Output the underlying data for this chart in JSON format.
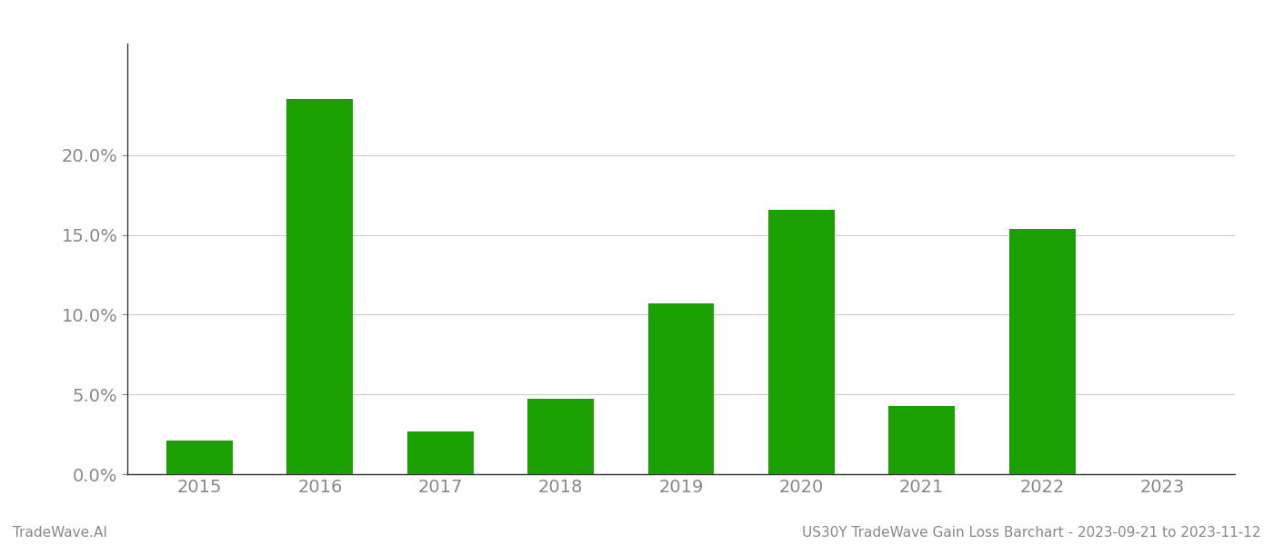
{
  "categories": [
    "2015",
    "2016",
    "2017",
    "2018",
    "2019",
    "2020",
    "2021",
    "2022",
    "2023"
  ],
  "values": [
    0.021,
    0.235,
    0.027,
    0.047,
    0.107,
    0.166,
    0.043,
    0.154,
    0.0
  ],
  "bar_color": "#1aA000",
  "background_color": "#ffffff",
  "ylabel_ticks": [
    0.0,
    0.05,
    0.1,
    0.15,
    0.2
  ],
  "ylim": [
    0.0,
    0.27
  ],
  "grid_color": "#cccccc",
  "footer_left": "TradeWave.AI",
  "footer_right": "US30Y TradeWave Gain Loss Barchart - 2023-09-21 to 2023-11-12",
  "footer_fontsize": 11,
  "tick_fontsize": 14,
  "axis_label_color": "#888888",
  "spine_color": "#333333",
  "bar_width": 0.55
}
